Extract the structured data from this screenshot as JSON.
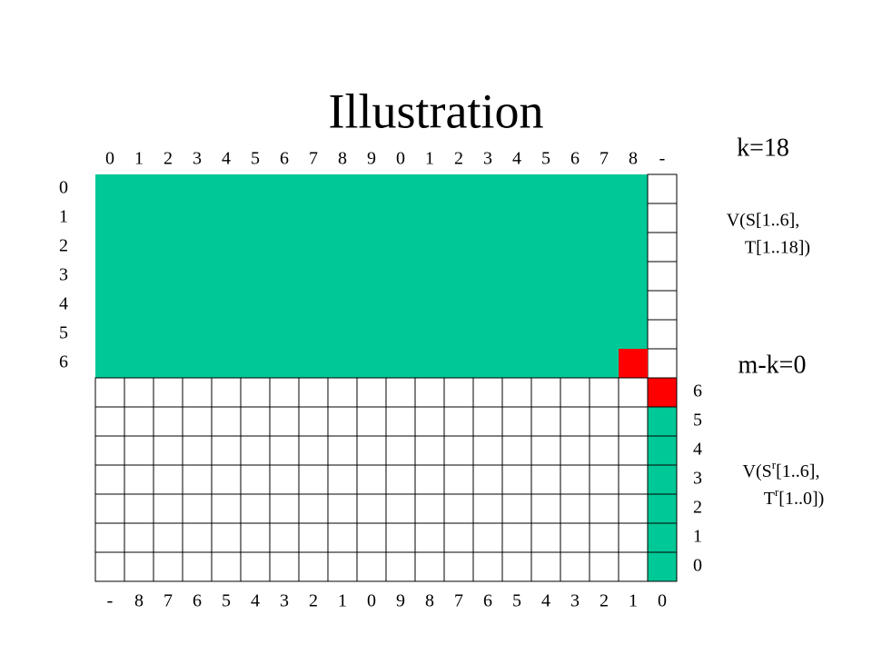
{
  "title": "Illustration",
  "top_labels": [
    "0",
    "1",
    "2",
    "3",
    "4",
    "5",
    "6",
    "7",
    "8",
    "9",
    "0",
    "1",
    "2",
    "3",
    "4",
    "5",
    "6",
    "7",
    "8",
    "-"
  ],
  "bottom_labels": [
    "-",
    "8",
    "7",
    "6",
    "5",
    "4",
    "3",
    "2",
    "1",
    "0",
    "9",
    "8",
    "7",
    "6",
    "5",
    "4",
    "3",
    "2",
    "1",
    "0"
  ],
  "left_labels": [
    "0",
    "1",
    "2",
    "3",
    "4",
    "5",
    "6"
  ],
  "right_labels": [
    "6",
    "5",
    "4",
    "3",
    "2",
    "1",
    "0"
  ],
  "k_label": "k=18",
  "upper_note": [
    "V(S[1..6],",
    "T[1..18])"
  ],
  "mk_label": "m-k=0",
  "lower_note": [
    [
      "V(S",
      "r",
      "[1..6],"
    ],
    [
      "T",
      "r",
      "[1..0])"
    ]
  ]
}
